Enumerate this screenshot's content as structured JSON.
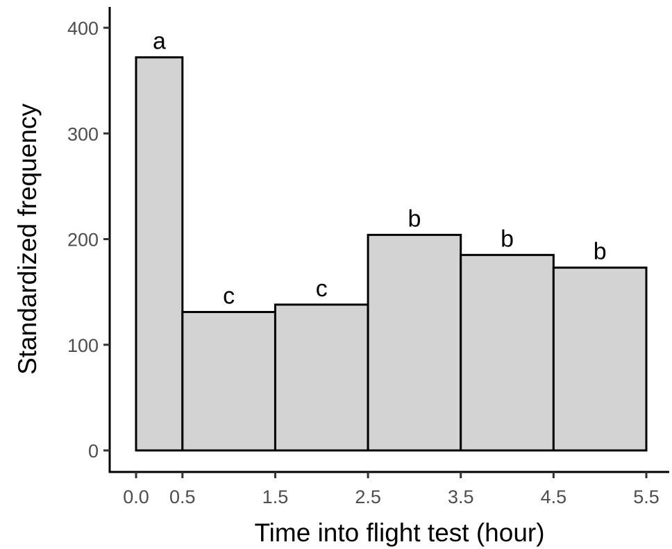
{
  "chart_data": {
    "type": "bar",
    "title": "",
    "xlabel": "Time into flight test (hour)",
    "ylabel": "Standardized frequency",
    "xlim": [
      0,
      5.5
    ],
    "ylim": [
      0,
      400
    ],
    "x_ticks": [
      "0.0",
      "0.5",
      "1.5",
      "2.5",
      "3.5",
      "4.5",
      "5.5"
    ],
    "y_ticks": [
      "0",
      "100",
      "200",
      "300",
      "400"
    ],
    "bins": [
      {
        "start": 0.0,
        "end": 0.5,
        "value": 372,
        "letter": "a"
      },
      {
        "start": 0.5,
        "end": 1.5,
        "value": 131,
        "letter": "c"
      },
      {
        "start": 1.5,
        "end": 2.5,
        "value": 138,
        "letter": "c"
      },
      {
        "start": 2.5,
        "end": 3.5,
        "value": 204,
        "letter": "b"
      },
      {
        "start": 3.5,
        "end": 4.5,
        "value": 185,
        "letter": "b"
      },
      {
        "start": 4.5,
        "end": 5.5,
        "value": 173,
        "letter": "b"
      }
    ],
    "bar_fill": "#d3d3d3",
    "bar_stroke": "#000000",
    "grid": false,
    "legend": "none"
  }
}
